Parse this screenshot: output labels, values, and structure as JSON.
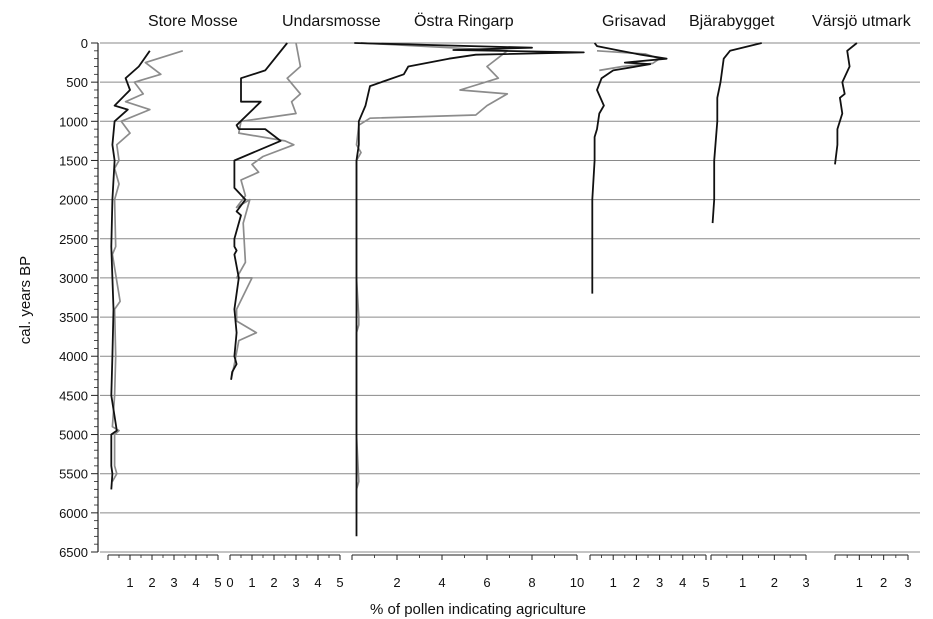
{
  "chart_data": {
    "type": "line",
    "ylabel": "cal. years BP",
    "xlabel": "% of pollen indicating agriculture",
    "y_axis": {
      "ticks": [
        0,
        500,
        1000,
        1500,
        2000,
        2500,
        3000,
        3500,
        4000,
        4500,
        5000,
        5500,
        6000,
        6500
      ],
      "ylim": [
        0,
        6500
      ],
      "inverted": true
    },
    "grid": {
      "horizontal": true,
      "step": 500
    },
    "series_colors": {
      "dark": "#111111",
      "light": "#8c8c8c"
    },
    "panels": [
      {
        "name": "Store Mosse",
        "xlim": [
          0,
          5
        ],
        "ticks": [
          "",
          "1",
          "2",
          "3",
          "4",
          "5"
        ],
        "series": [
          {
            "color": "dark",
            "points": [
              [
                1.9,
                100
              ],
              [
                1.4,
                300
              ],
              [
                0.8,
                450
              ],
              [
                1.0,
                600
              ],
              [
                0.3,
                800
              ],
              [
                0.9,
                850
              ],
              [
                0.3,
                1000
              ],
              [
                0.2,
                1300
              ],
              [
                0.3,
                1500
              ],
              [
                0.2,
                2000
              ],
              [
                0.15,
                2600
              ],
              [
                0.2,
                3000
              ],
              [
                0.25,
                3400
              ],
              [
                0.2,
                4000
              ],
              [
                0.15,
                4500
              ],
              [
                0.4,
                4950
              ],
              [
                0.15,
                5000
              ],
              [
                0.15,
                5400
              ],
              [
                0.2,
                5500
              ],
              [
                0.15,
                5700
              ]
            ]
          },
          {
            "color": "light",
            "points": [
              [
                3.4,
                100
              ],
              [
                1.7,
                250
              ],
              [
                2.4,
                400
              ],
              [
                1.2,
                500
              ],
              [
                1.6,
                650
              ],
              [
                0.8,
                750
              ],
              [
                1.9,
                850
              ],
              [
                0.6,
                1000
              ],
              [
                1.0,
                1150
              ],
              [
                0.4,
                1300
              ],
              [
                0.5,
                1500
              ],
              [
                0.3,
                1600
              ],
              [
                0.5,
                1800
              ],
              [
                0.3,
                2000
              ],
              [
                0.35,
                2600
              ],
              [
                0.2,
                2700
              ],
              [
                0.55,
                3300
              ],
              [
                0.3,
                3400
              ],
              [
                0.35,
                4000
              ],
              [
                0.3,
                4500
              ],
              [
                0.2,
                4900
              ],
              [
                0.5,
                4950
              ],
              [
                0.3,
                5000
              ],
              [
                0.3,
                5400
              ],
              [
                0.4,
                5500
              ],
              [
                0.2,
                5600
              ]
            ]
          }
        ]
      },
      {
        "name": "Undarsmosse",
        "xlim": [
          0,
          5
        ],
        "ticks": [
          "0",
          "1",
          "2",
          "3",
          "4",
          "5"
        ],
        "series": [
          {
            "color": "dark",
            "points": [
              [
                2.6,
                0
              ],
              [
                1.6,
                350
              ],
              [
                0.5,
                450
              ],
              [
                0.5,
                750
              ],
              [
                1.4,
                750
              ],
              [
                0.3,
                1050
              ],
              [
                0.4,
                1100
              ],
              [
                1.6,
                1100
              ],
              [
                2.3,
                1250
              ],
              [
                0.2,
                1500
              ],
              [
                0.2,
                1850
              ],
              [
                0.7,
                2000
              ],
              [
                0.3,
                2150
              ],
              [
                0.5,
                2200
              ],
              [
                0.2,
                2500
              ],
              [
                0.2,
                2600
              ],
              [
                0.3,
                2650
              ],
              [
                0.2,
                2700
              ],
              [
                0.4,
                3000
              ],
              [
                0.2,
                3400
              ],
              [
                0.3,
                3700
              ],
              [
                0.2,
                4000
              ],
              [
                0.3,
                4100
              ],
              [
                0.1,
                4200
              ],
              [
                0.05,
                4300
              ]
            ]
          },
          {
            "color": "light",
            "points": [
              [
                3.0,
                0
              ],
              [
                3.2,
                300
              ],
              [
                2.6,
                450
              ],
              [
                3.2,
                650
              ],
              [
                2.8,
                750
              ],
              [
                3.0,
                900
              ],
              [
                0.5,
                1000
              ],
              [
                0.4,
                1150
              ],
              [
                2.5,
                1250
              ],
              [
                2.9,
                1300
              ],
              [
                1.5,
                1450
              ],
              [
                1.0,
                1550
              ],
              [
                1.3,
                1650
              ],
              [
                0.5,
                1750
              ],
              [
                0.7,
                1950
              ],
              [
                0.3,
                2100
              ],
              [
                0.9,
                2000
              ],
              [
                0.6,
                2300
              ],
              [
                0.7,
                2800
              ],
              [
                0.3,
                3000
              ],
              [
                1.0,
                3000
              ],
              [
                0.3,
                3400
              ],
              [
                0.3,
                3550
              ],
              [
                1.2,
                3700
              ],
              [
                0.4,
                3800
              ],
              [
                0.2,
                4100
              ],
              [
                0.05,
                4300
              ]
            ]
          }
        ]
      },
      {
        "name": "Östra Ringarp",
        "xlim": [
          0,
          10
        ],
        "ticks": [
          "",
          "2",
          "4",
          "6",
          "8",
          "10"
        ],
        "series": [
          {
            "color": "dark",
            "points": [
              [
                0.1,
                0
              ],
              [
                8.0,
                60
              ],
              [
                4.5,
                90
              ],
              [
                10.3,
                120
              ],
              [
                5.5,
                150
              ],
              [
                4.3,
                200
              ],
              [
                2.5,
                300
              ],
              [
                2.3,
                400
              ],
              [
                0.8,
                550
              ],
              [
                0.6,
                800
              ],
              [
                0.3,
                1000
              ],
              [
                0.3,
                1300
              ],
              [
                0.2,
                1500
              ],
              [
                0.2,
                2000
              ],
              [
                0.2,
                3000
              ],
              [
                0.2,
                4000
              ],
              [
                0.2,
                5000
              ],
              [
                0.2,
                6300
              ]
            ]
          },
          {
            "color": "light",
            "points": [
              [
                0.4,
                0
              ],
              [
                6.9,
                100
              ],
              [
                6.0,
                300
              ],
              [
                6.5,
                450
              ],
              [
                4.8,
                600
              ],
              [
                6.9,
                650
              ],
              [
                6.0,
                800
              ],
              [
                5.5,
                920
              ],
              [
                0.8,
                960
              ],
              [
                0.3,
                1050
              ],
              [
                0.2,
                1300
              ],
              [
                0.4,
                1400
              ],
              [
                0.2,
                1500
              ],
              [
                0.2,
                2000
              ],
              [
                0.2,
                3000
              ],
              [
                0.3,
                3500
              ],
              [
                0.3,
                3600
              ],
              [
                0.2,
                3700
              ],
              [
                0.2,
                5000
              ],
              [
                0.3,
                5600
              ],
              [
                0.2,
                5700
              ],
              [
                0.2,
                6000
              ]
            ]
          }
        ]
      },
      {
        "name": "Grisavad",
        "xlim": [
          0,
          5
        ],
        "ticks": [
          "",
          "1",
          "2",
          "3",
          "4",
          "5"
        ],
        "series": [
          {
            "color": "dark",
            "points": [
              [
                0.2,
                0
              ],
              [
                0.3,
                40
              ],
              [
                1.3,
                100
              ],
              [
                2.2,
                150
              ],
              [
                3.3,
                200
              ],
              [
                1.5,
                250
              ],
              [
                2.6,
                270
              ],
              [
                1.0,
                350
              ],
              [
                0.5,
                450
              ],
              [
                0.3,
                600
              ],
              [
                0.6,
                800
              ],
              [
                0.4,
                900
              ],
              [
                0.3,
                1100
              ],
              [
                0.2,
                1200
              ],
              [
                0.2,
                1500
              ],
              [
                0.1,
                2000
              ],
              [
                0.1,
                2500
              ],
              [
                0.1,
                3000
              ],
              [
                0.1,
                3200
              ]
            ]
          },
          {
            "color": "light",
            "points": [
              [
                0.3,
                100
              ],
              [
                2.4,
                140
              ],
              [
                3.0,
                200
              ],
              [
                2.7,
                260
              ],
              [
                1.4,
                300
              ],
              [
                0.4,
                350
              ]
            ]
          }
        ]
      },
      {
        "name": "Bjärabygget",
        "xlim": [
          0,
          3
        ],
        "ticks": [
          "",
          "1",
          "2",
          "3"
        ],
        "series": [
          {
            "color": "dark",
            "points": [
              [
                1.6,
                0
              ],
              [
                0.6,
                100
              ],
              [
                0.4,
                200
              ],
              [
                0.3,
                500
              ],
              [
                0.2,
                700
              ],
              [
                0.2,
                1000
              ],
              [
                0.1,
                1500
              ],
              [
                0.1,
                2000
              ],
              [
                0.05,
                2300
              ]
            ]
          }
        ]
      },
      {
        "name": "Värsjö utmark",
        "xlim": [
          0,
          3
        ],
        "ticks": [
          "",
          "1",
          "2",
          "3"
        ],
        "series": [
          {
            "color": "dark",
            "points": [
              [
                0.9,
                0
              ],
              [
                0.5,
                100
              ],
              [
                0.6,
                300
              ],
              [
                0.3,
                500
              ],
              [
                0.4,
                650
              ],
              [
                0.2,
                700
              ],
              [
                0.3,
                900
              ],
              [
                0.1,
                1100
              ],
              [
                0.1,
                1300
              ],
              [
                0.0,
                1550
              ]
            ]
          }
        ]
      }
    ]
  }
}
